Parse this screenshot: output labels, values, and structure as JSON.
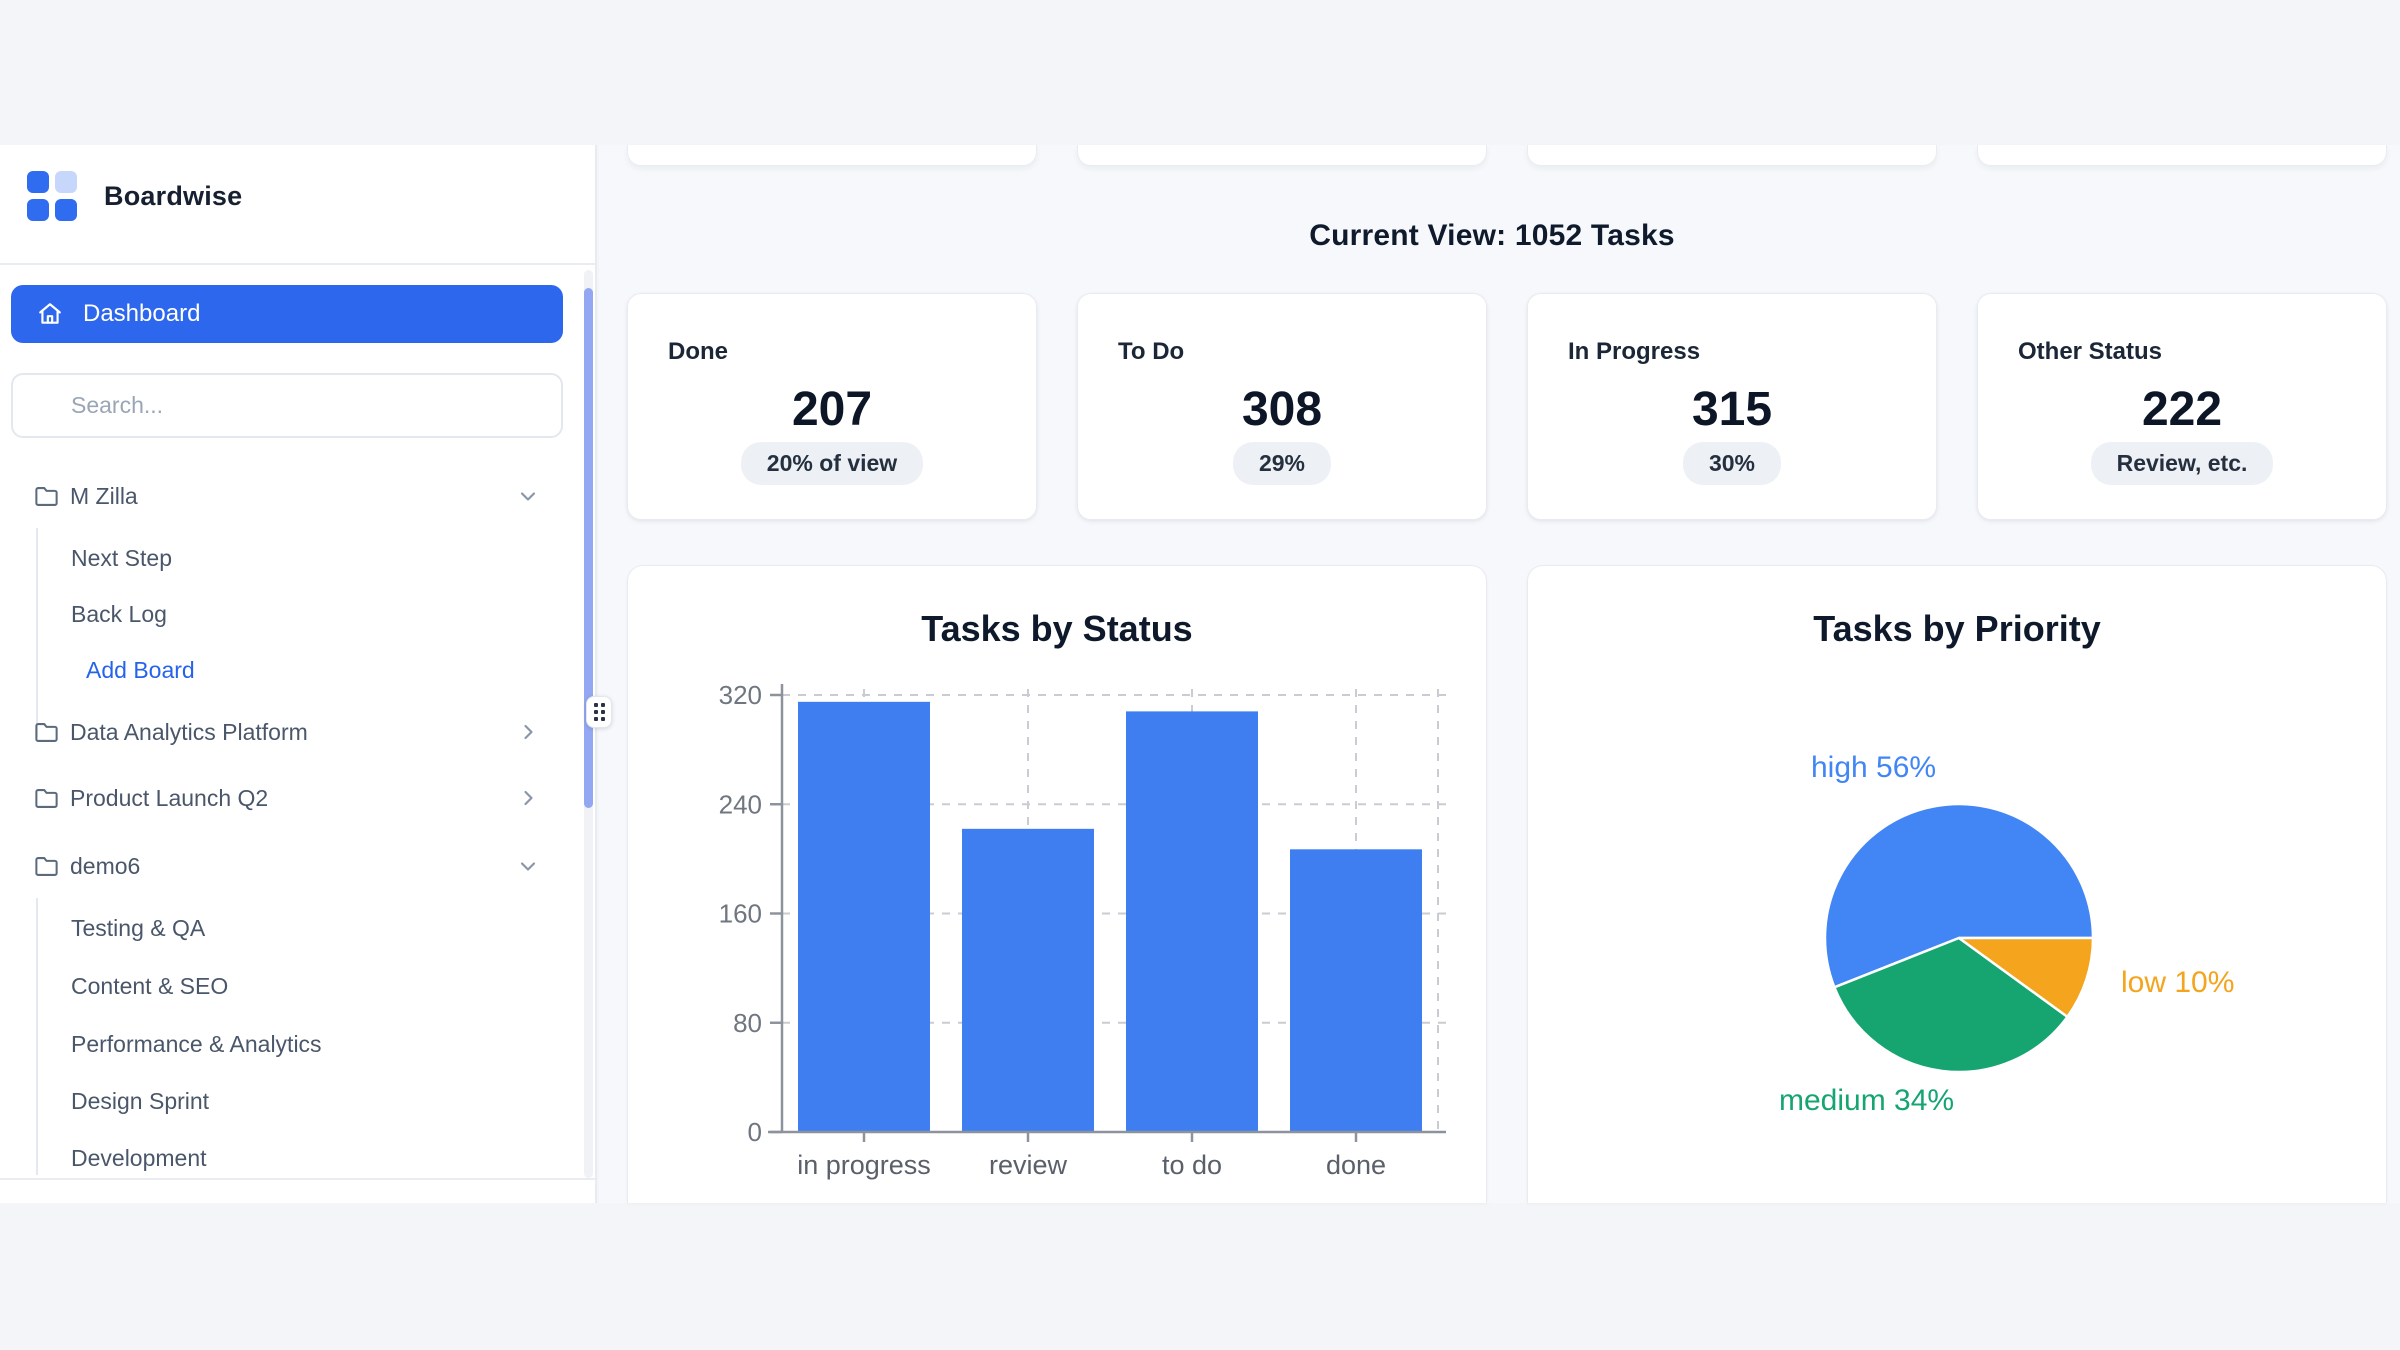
{
  "brand": {
    "name": "Boardwise",
    "accent_color": "#2c67ee",
    "logo_square_colors": [
      "#2f6cf0",
      "#c7d7fb",
      "#2f6cf0",
      "#2f6cf0"
    ]
  },
  "sidebar": {
    "dashboard_label": "Dashboard",
    "search_placeholder": "Search...",
    "tree": [
      {
        "label": "M Zilla",
        "type": "folder",
        "state": "expanded"
      },
      {
        "label": "Next Step",
        "type": "board"
      },
      {
        "label": "Back Log",
        "type": "board"
      },
      {
        "label": "Add Board",
        "type": "action",
        "color": "#2563eb"
      },
      {
        "label": "Data Analytics Platform",
        "type": "folder",
        "state": "collapsed"
      },
      {
        "label": "Product Launch Q2",
        "type": "folder",
        "state": "collapsed"
      },
      {
        "label": "demo6",
        "type": "folder",
        "state": "expanded"
      },
      {
        "label": "Testing & QA",
        "type": "board"
      },
      {
        "label": "Content & SEO",
        "type": "board"
      },
      {
        "label": "Performance & Analytics",
        "type": "board"
      },
      {
        "label": "Design Sprint",
        "type": "board"
      },
      {
        "label": "Development",
        "type": "board"
      }
    ]
  },
  "main": {
    "heading": "Current View: 1052 Tasks",
    "stats": [
      {
        "label": "Done",
        "value": "207",
        "badge": "20% of view"
      },
      {
        "label": "To Do",
        "value": "308",
        "badge": "29%"
      },
      {
        "label": "In Progress",
        "value": "315",
        "badge": "30%"
      },
      {
        "label": "Other Status",
        "value": "222",
        "badge": "Review, etc."
      }
    ]
  },
  "chart_data": [
    {
      "type": "bar",
      "title": "Tasks by Status",
      "categories": [
        "in progress",
        "review",
        "to do",
        "done"
      ],
      "values": [
        315,
        222,
        308,
        207
      ],
      "xlabel": "",
      "ylabel": "",
      "ylim": [
        0,
        320
      ],
      "yticks": [
        0,
        80,
        160,
        240,
        320
      ],
      "grid": "dashed",
      "legend": "none",
      "bar_color": "#3e7ef1",
      "axis_color": "#8d939c",
      "grid_color": "#c9ccd2",
      "ytick_label_color": "#6f767f",
      "xtick_label_color": "#5a6069"
    },
    {
      "type": "pie",
      "title": "Tasks by Priority",
      "labels": [
        "high",
        "medium",
        "low"
      ],
      "values_pct": [
        56,
        34,
        10
      ],
      "label_texts": {
        "high": "high 56%",
        "medium": "medium 34%",
        "low": "low 10%"
      },
      "colors": [
        "#4285f4",
        "#16a571",
        "#f4a41d"
      ],
      "start_angle_deg": 0,
      "direction": "counterclockwise",
      "legend": "none"
    }
  ]
}
